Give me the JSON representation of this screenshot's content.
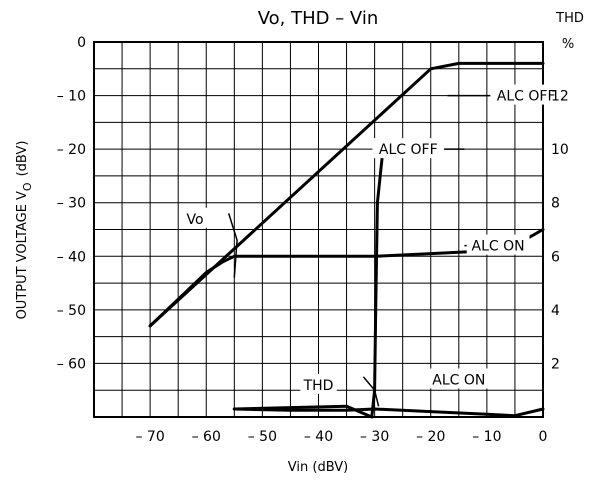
{
  "chart_data": {
    "type": "line",
    "title": "Vo, THD  –  Vin",
    "xlabel": "Vin    (dBV)",
    "ylabel": "OUTPUT VOLTAGE   V",
    "ylabel_subscript": "O",
    "ylabel_unit": "(dBV)",
    "y2label_top": "THD",
    "y2label_bottom": "%",
    "xlim": [
      -80,
      0
    ],
    "ylim": [
      -70,
      0
    ],
    "y2lim": [
      0,
      14
    ],
    "grid": true,
    "x_ticks": [
      -70,
      -60,
      -50,
      -40,
      -30,
      -20,
      -10,
      0
    ],
    "x_tick_labels": [
      "– 70",
      "– 60",
      "– 50",
      "– 40",
      "– 30",
      "– 20",
      "– 10",
      "0"
    ],
    "y_ticks": [
      0,
      -10,
      -20,
      -30,
      -40,
      -50,
      -60
    ],
    "y_tick_labels": [
      "0",
      "– 10",
      "– 20",
      "– 30",
      "– 40",
      "– 50",
      "– 60"
    ],
    "y2_ticks": [
      12,
      10,
      8,
      6,
      4,
      2
    ],
    "y2_tick_labels": [
      "12",
      "10",
      "8",
      "6",
      "4",
      "2"
    ],
    "series": [
      {
        "name": "Vo",
        "label": "ALC OFF",
        "axis": "left",
        "x": [
          -70,
          -20,
          -15,
          0
        ],
        "y": [
          -53,
          -5,
          -4,
          -4
        ]
      },
      {
        "name": "Vo",
        "label": "ALC ON",
        "axis": "left",
        "x": [
          -70,
          -60,
          -57,
          -55,
          -30,
          -20,
          -10,
          -5,
          0
        ],
        "y": [
          -53,
          -43,
          -41,
          -40,
          -40,
          -39.5,
          -39,
          -38,
          -35
        ]
      },
      {
        "name": "THD",
        "label": "ALC OFF",
        "axis": "right",
        "x": [
          -55,
          -35,
          -30.5,
          -30,
          -29.8,
          -29.5,
          -28.5
        ],
        "y": [
          0.3,
          0.4,
          0,
          1,
          4,
          8,
          10
        ]
      },
      {
        "name": "THD",
        "label": "ALC ON",
        "axis": "right",
        "x": [
          -55,
          -45,
          -35,
          -30,
          -20,
          -10,
          -5,
          0
        ],
        "y": [
          0.3,
          0.25,
          0.25,
          0.3,
          0.2,
          0.1,
          0.05,
          0.3
        ]
      }
    ],
    "annotations": [
      {
        "text": "Vo",
        "x": -62,
        "y": -33
      },
      {
        "text": "ALC OFF",
        "x": -3,
        "y": -10
      },
      {
        "text": "ALC OFF",
        "x": -24,
        "y": -20
      },
      {
        "text": "ALC ON",
        "x": -8,
        "y": -38
      },
      {
        "text": "THD",
        "x": -40,
        "y": -64
      },
      {
        "text": "ALC ON",
        "x": -15,
        "y": -63
      }
    ]
  }
}
